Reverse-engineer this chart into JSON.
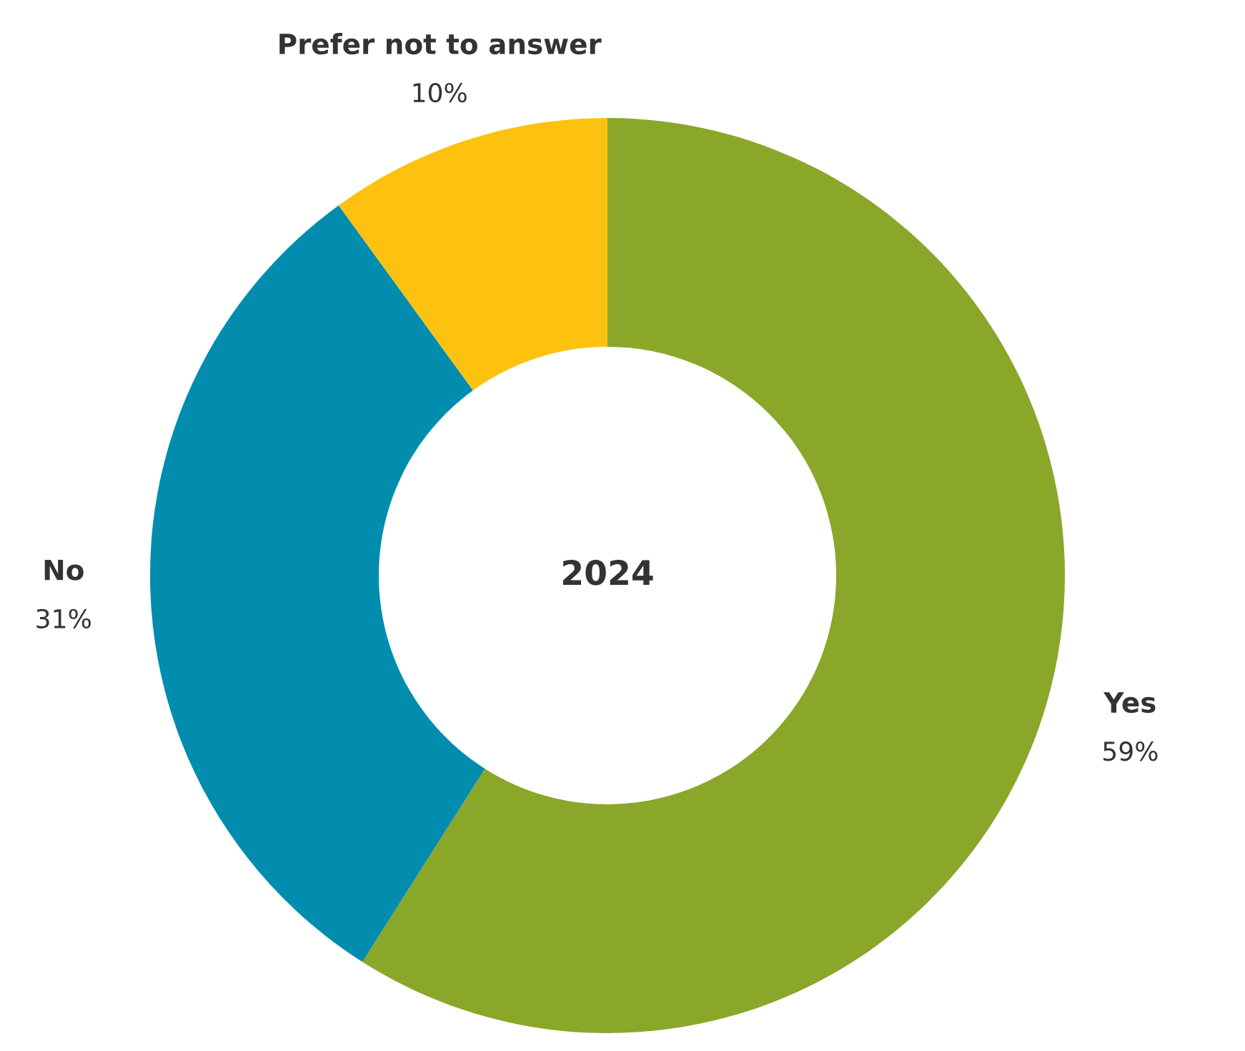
{
  "chart_data": {
    "type": "donut",
    "title": "2024",
    "categories": [
      "Yes",
      "No",
      "Prefer not to answer"
    ],
    "values": [
      59,
      31,
      10
    ],
    "colors": [
      "#8aa72a",
      "#028daf",
      "#fdc20f"
    ],
    "value_labels": [
      "59%",
      "31%",
      "10%"
    ]
  }
}
